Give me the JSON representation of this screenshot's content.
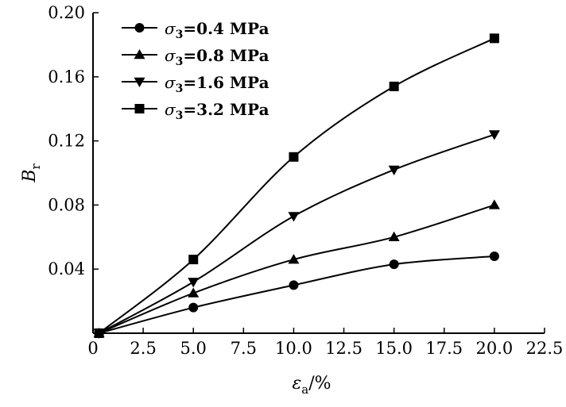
{
  "chart_data": {
    "type": "line",
    "title": "",
    "xlabel": "εa/%",
    "ylabel": "Br",
    "xlabel_parts": {
      "symbol": "ε",
      "sub": "a",
      "suffix": "/%"
    },
    "ylabel_parts": {
      "symbol": "B",
      "sub": "r"
    },
    "xlim": [
      0,
      22.5
    ],
    "ylim": [
      0,
      0.2
    ],
    "x_ticks": [
      0,
      2.5,
      5.0,
      7.5,
      10.0,
      12.5,
      15.0,
      17.5,
      20.0,
      22.5
    ],
    "x_tick_labels": [
      "0",
      "2.5",
      "5.0",
      "7.5",
      "10.0",
      "12.5",
      "15.0",
      "17.5",
      "20.0",
      "22.5"
    ],
    "y_ticks": [
      0.04,
      0.08,
      0.12,
      0.16,
      0.2
    ],
    "y_tick_labels": [
      "0.04",
      "0.08",
      "0.12",
      "0.16",
      "0.20"
    ],
    "grid": false,
    "legend_position": "top-left",
    "x": [
      0.3,
      5,
      10,
      15,
      20
    ],
    "series": [
      {
        "name": "σ3=0.4 MPa",
        "label": {
          "symbol": "σ",
          "sub": "3",
          "rest": "=0.4 MPa"
        },
        "marker": "circle",
        "values": [
          0,
          0.016,
          0.03,
          0.043,
          0.048
        ]
      },
      {
        "name": "σ3=0.8 MPa",
        "label": {
          "symbol": "σ",
          "sub": "3",
          "rest": "=0.8 MPa"
        },
        "marker": "triangle-up",
        "values": [
          0,
          0.025,
          0.046,
          0.06,
          0.08
        ]
      },
      {
        "name": "σ3=1.6 MPa",
        "label": {
          "symbol": "σ",
          "sub": "3",
          "rest": "=1.6 MPa"
        },
        "marker": "triangle-down",
        "values": [
          0,
          0.032,
          0.073,
          0.102,
          0.124
        ]
      },
      {
        "name": "σ3=3.2 MPa",
        "label": {
          "symbol": "σ",
          "sub": "3",
          "rest": "=3.2 MPa"
        },
        "marker": "square",
        "values": [
          0,
          0.046,
          0.11,
          0.154,
          0.184
        ]
      }
    ]
  }
}
